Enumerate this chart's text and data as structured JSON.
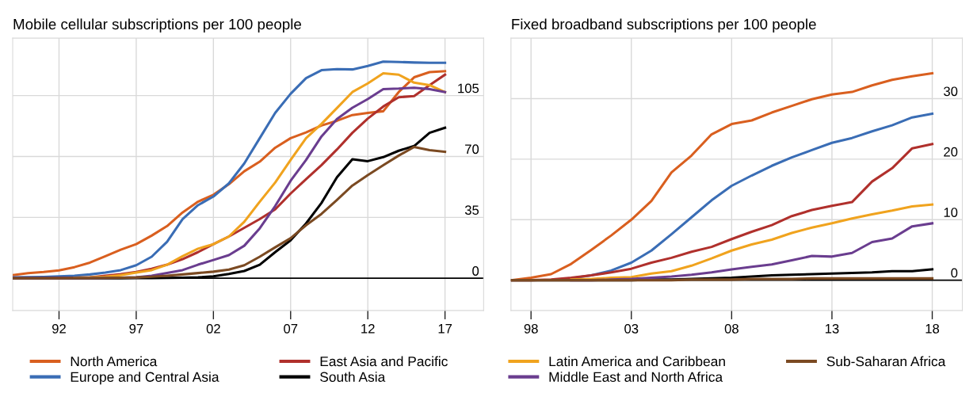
{
  "chart_data": [
    {
      "type": "line",
      "title": "Mobile cellular subscriptions per 100 people",
      "x": [
        1989,
        1990,
        1991,
        1992,
        1993,
        1994,
        1995,
        1996,
        1997,
        1998,
        1999,
        2000,
        2001,
        2002,
        2003,
        2004,
        2005,
        2006,
        2007,
        2008,
        2009,
        2010,
        2011,
        2012,
        2013,
        2014,
        2015,
        2016,
        2017
      ],
      "xlim": [
        1989,
        2019.5
      ],
      "xticks": [
        {
          "value": 1992,
          "label": "92"
        },
        {
          "value": 1997,
          "label": "97"
        },
        {
          "value": 2002,
          "label": "02"
        },
        {
          "value": 2007,
          "label": "07"
        },
        {
          "value": 2012,
          "label": "12"
        },
        {
          "value": 2017,
          "label": "17"
        }
      ],
      "ylim": [
        -18.5,
        138
      ],
      "yticks": [
        0,
        35,
        70,
        105
      ],
      "grid": true,
      "legend": "bottom",
      "ref_lines": [
        {
          "axis": "y",
          "value": 0,
          "color": "#000000"
        }
      ],
      "series": [
        {
          "name": "North America",
          "color": "#d95f1f",
          "values": [
            1.8,
            2.9,
            3.6,
            4.5,
            6.4,
            9,
            12.7,
            16.4,
            19.6,
            24.5,
            30,
            37.8,
            44,
            48,
            54,
            61.5,
            67,
            75,
            80.5,
            83.8,
            87.8,
            90.5,
            93.8,
            95,
            96,
            107,
            115.5,
            118.5,
            119
          ]
        },
        {
          "name": "Europe and Central Asia",
          "color": "#3a6db5",
          "values": [
            0.5,
            0.6,
            0.8,
            1.1,
            1.5,
            2.2,
            3.3,
            4.7,
            7.5,
            12.4,
            21,
            34,
            42,
            47,
            54.5,
            66,
            80.5,
            95,
            106,
            115,
            119.6,
            120.2,
            120,
            122,
            124.5,
            124.3,
            124,
            123.8,
            123.8
          ]
        },
        {
          "name": "East Asia and Pacific",
          "color": "#b0302c",
          "values": [
            0.1,
            0.1,
            0.1,
            0.2,
            0.3,
            0.5,
            1.5,
            2.4,
            3.6,
            5.5,
            7.8,
            11,
            15,
            19.6,
            24,
            29,
            34,
            39.6,
            48.7,
            57,
            65,
            74,
            83.6,
            91.8,
            98.7,
            104,
            104.7,
            111,
            117
          ]
        },
        {
          "name": "South Asia",
          "color": "#000000",
          "values": [
            0,
            0,
            0,
            0,
            0,
            0,
            0,
            0,
            0.1,
            0.1,
            0.2,
            0.3,
            0.5,
            1.1,
            2.5,
            4.2,
            7.8,
            15,
            21.8,
            31.5,
            43.3,
            58,
            68.4,
            67.3,
            69.6,
            73.3,
            76,
            83.6,
            86.5
          ]
        },
        {
          "name": "Latin America and Caribbean",
          "color": "#f0a31e",
          "values": [
            null,
            null,
            null,
            null,
            0.3,
            0.5,
            0.9,
            1.8,
            3.3,
            4.7,
            7.8,
            12.7,
            17,
            19.6,
            24,
            32.5,
            44,
            55,
            68,
            80.5,
            88.7,
            97.8,
            107,
            112,
            117.8,
            117,
            112.4,
            111,
            107
          ]
        },
        {
          "name": "Middle East and North Africa",
          "color": "#6a3d8f",
          "values": [
            0,
            0,
            0,
            0,
            0.1,
            0.1,
            0.2,
            0.3,
            0.5,
            1.5,
            3,
            4.7,
            7.8,
            10.5,
            13.3,
            18.7,
            28.7,
            41.5,
            56,
            68,
            81.5,
            91.5,
            98,
            103,
            108.7,
            109,
            109.5,
            108.7,
            107
          ]
        },
        {
          "name": "Sub-Saharan Africa",
          "color": "#7b4a22",
          "values": [
            0,
            0,
            0,
            0,
            0.1,
            0.1,
            0.2,
            0.3,
            0.5,
            0.9,
            1.5,
            2.2,
            3,
            3.8,
            5,
            7.5,
            12.4,
            17.8,
            23,
            30.5,
            37,
            45,
            53.3,
            59.3,
            65,
            70.5,
            75.5,
            73.6,
            72.7
          ]
        }
      ]
    },
    {
      "type": "line",
      "title": "Fixed broadband subscriptions per 100 people",
      "x": [
        1997,
        1998,
        1999,
        2000,
        2001,
        2002,
        2003,
        2004,
        2005,
        2006,
        2007,
        2008,
        2009,
        2010,
        2011,
        2012,
        2013,
        2014,
        2015,
        2016,
        2017,
        2018
      ],
      "xlim": [
        1997,
        2019.5
      ],
      "xticks": [
        {
          "value": 1998,
          "label": "98"
        },
        {
          "value": 2003,
          "label": "03"
        },
        {
          "value": 2008,
          "label": "08"
        },
        {
          "value": 2013,
          "label": "13"
        },
        {
          "value": 2018,
          "label": "18"
        }
      ],
      "ylim": [
        -5,
        40
      ],
      "yticks": [
        0,
        10,
        20,
        30
      ],
      "grid": true,
      "ref_lines": [
        {
          "axis": "y",
          "value": 0,
          "color": "#000000"
        }
      ],
      "series": [
        {
          "color": "#d95f1f",
          "values": [
            0,
            0.4,
            1,
            2.7,
            5,
            7.4,
            10,
            13.1,
            17.8,
            20.6,
            24.1,
            25.8,
            26.4,
            27.7,
            28.8,
            29.9,
            30.7,
            31.1,
            32.2,
            33.1,
            33.7,
            34.2
          ]
        },
        {
          "color": "#3a6db5",
          "values": [
            null,
            null,
            null,
            0.3,
            0.8,
            1.6,
            2.9,
            4.9,
            7.6,
            10.4,
            13.2,
            15.6,
            17.3,
            18.9,
            20.3,
            21.5,
            22.7,
            23.5,
            24.6,
            25.6,
            26.9,
            27.5
          ]
        },
        {
          "color": "#b0302c",
          "values": [
            0,
            0,
            0.1,
            0.4,
            0.8,
            1.3,
            1.9,
            2.9,
            3.7,
            4.7,
            5.5,
            6.8,
            8,
            9.1,
            10.6,
            11.6,
            12.3,
            12.9,
            16.3,
            18.5,
            21.8,
            22.5
          ]
        },
        {
          "color": "#000000",
          "values": [
            0,
            0,
            0,
            0,
            0,
            0,
            0,
            0.1,
            0.1,
            0.2,
            0.3,
            0.4,
            0.6,
            0.8,
            0.9,
            1,
            1.1,
            1.2,
            1.3,
            1.5,
            1.5,
            1.8
          ]
        },
        {
          "color": "#f0a31e",
          "values": [
            null,
            null,
            null,
            0.1,
            0.2,
            0.4,
            0.5,
            1.1,
            1.5,
            2.4,
            3.6,
            4.9,
            5.9,
            6.7,
            7.8,
            8.7,
            9.4,
            10.2,
            10.9,
            11.5,
            12.2,
            12.5
          ]
        },
        {
          "color": "#6a3d8f",
          "values": [
            null,
            null,
            null,
            0,
            0,
            0.1,
            0.2,
            0.4,
            0.6,
            0.9,
            1.3,
            1.8,
            2.2,
            2.6,
            3.3,
            4,
            3.9,
            4.5,
            6.3,
            6.9,
            8.9,
            9.4
          ]
        },
        {
          "color": "#7b4a22",
          "values": [
            0,
            0,
            0,
            0,
            0,
            0,
            0,
            0,
            0,
            0.1,
            0.1,
            0.1,
            0.2,
            0.2,
            0.2,
            0.3,
            0.3,
            0.3,
            0.3,
            0.3,
            0.3,
            0.3
          ]
        }
      ]
    }
  ]
}
